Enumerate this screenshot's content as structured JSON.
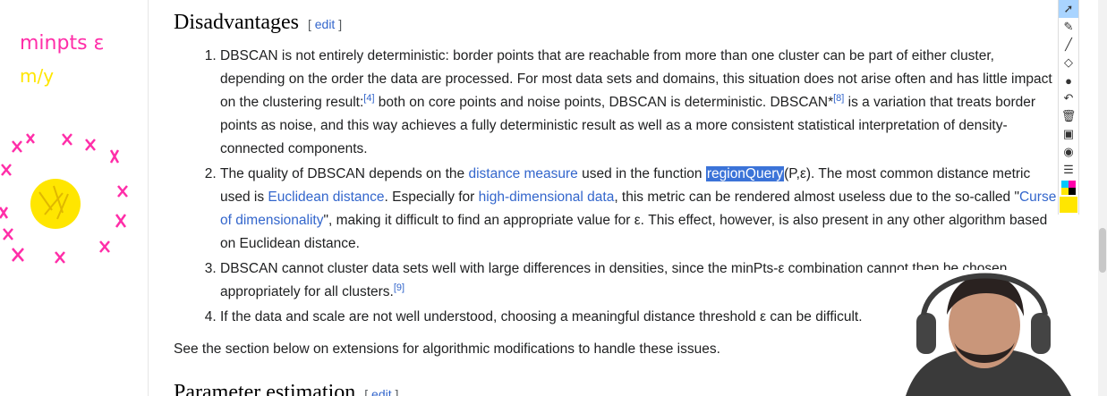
{
  "sections": {
    "disadvantages": {
      "title": "Disadvantages",
      "edit_label": "edit"
    },
    "parameter_estimation": {
      "title": "Parameter estimation",
      "edit_label": "edit"
    }
  },
  "items": [
    {
      "num": "1.",
      "t1": "DBSCAN is not entirely deterministic: border points that are reachable from more than one cluster can be part of either cluster, depending on the order the data are processed. For most data sets and domains, this situation does not arise often and has little impact on the clustering result:",
      "ref1": "[4]",
      "t2": " both on core points and noise points, DBSCAN is deterministic. DBSCAN*",
      "ref2": "[8]",
      "t3": " is a variation that treats border points as noise, and this way achieves a fully deterministic result as well as a more consistent statistical interpretation of density-connected components."
    },
    {
      "num": "2.",
      "t1": "The quality of DBSCAN depends on the ",
      "link1": "distance measure",
      "t2": " used in the function ",
      "highlight": "regionQuery",
      "t3": "(P,ε). The most common distance metric used is ",
      "link2": "Euclidean distance",
      "t4": ". Especially for ",
      "link3": "high-dimensional data",
      "t5": ", this metric can be rendered almost useless due to the so-called \"",
      "link4": "Curse of dimensionality",
      "t6": "\", making it difficult to find an appropriate value for ε. This effect, however, is also present in any other algorithm based on Euclidean distance."
    },
    {
      "num": "3.",
      "t1": "DBSCAN cannot cluster data sets well with large differences in densities, since the minPts-ε combination cannot then be chosen appropriately for all clusters.",
      "ref1": "[9]"
    },
    {
      "num": "4.",
      "t1": "If the data and scale are not well understood, choosing a meaningful distance threshold ε can be difficult."
    }
  ],
  "see_also_text": "See the section below on extensions for algorithmic modifications to handle these issues.",
  "annotations": {
    "note_line1": "minpts ε",
    "note_line2": "m/y",
    "ink_colors": [
      "#ff2da8",
      "#ffe600"
    ]
  },
  "toolbar": {
    "tools": [
      "pointer-icon",
      "pen-icon",
      "line-icon",
      "eraser-icon",
      "dot-icon",
      "undo-icon",
      "trash-icon",
      "camera-icon",
      "screenshot-icon",
      "notes-icon",
      "palette-icon"
    ]
  }
}
